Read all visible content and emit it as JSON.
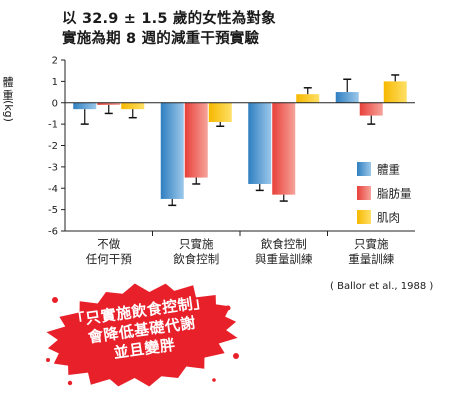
{
  "title_lines": [
    "以 32.9 ± 1.5 歲的女性為對象",
    "實施為期 8 週的減重干預實驗"
  ],
  "ylabel": {
    "chars": [
      "體",
      "重"
    ],
    "unit": "(kg)"
  },
  "citation": "( Ballor et al., 1988 )",
  "callout_lines": [
    "「只實施飲食控制」",
    "會降低基礎代謝",
    "並且變胖"
  ],
  "colors": {
    "body_weight": "#2f7fc1",
    "fat_mass": "#e8403a",
    "muscle": "#f6b800",
    "stamp": "#e8202a"
  },
  "chart_data": {
    "type": "bar",
    "categories": [
      "不做\n任何干預",
      "只實施\n飲食控制",
      "飲食控制\n與重量訓練",
      "只實施\n重量訓練"
    ],
    "series": [
      {
        "name": "體重",
        "values": [
          -0.3,
          -4.5,
          -3.8,
          0.5
        ],
        "errors": [
          0.7,
          0.3,
          0.3,
          0.6
        ]
      },
      {
        "name": "脂肪量",
        "values": [
          -0.1,
          -3.5,
          -4.3,
          -0.6
        ],
        "errors": [
          0.4,
          0.3,
          0.3,
          0.4
        ]
      },
      {
        "name": "肌肉",
        "values": [
          -0.3,
          -0.9,
          0.4,
          1.0
        ],
        "errors": [
          0.4,
          0.2,
          0.3,
          0.3
        ]
      }
    ],
    "ylim": [
      -6,
      2
    ],
    "yticks": [
      2,
      1,
      0,
      -1,
      -2,
      -3,
      -4,
      -5,
      -6
    ],
    "legend_position": "lower-right",
    "grid": false
  }
}
